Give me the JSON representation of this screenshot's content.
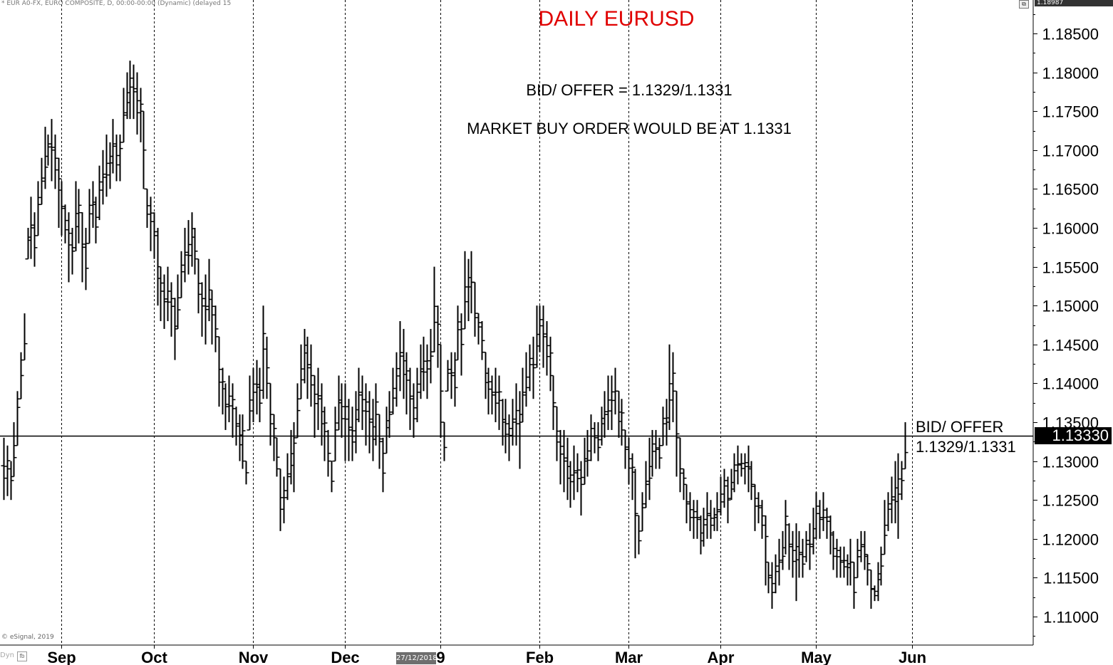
{
  "header": {
    "symbol_info": "* EUR A0-FX, EURO COMPOSITE, D, 00:00-00:00 (Dynamic) (delayed 15",
    "top_price_tag": "1.18987"
  },
  "annotations": {
    "bid_offer_line1": "BID/ OFFER = 1.1329/1.1331",
    "market_order": "MARKET BUY ORDER WOULD BE AT 1.1331",
    "right_label_1": "BID/ OFFER",
    "right_label_2": "1.1329/1.1331"
  },
  "footer": {
    "copyright": "© eSignal, 2019",
    "date_flag": "27/12/2018",
    "corner_label": "Dyn"
  },
  "colors": {
    "title": "#e00000",
    "bars": "#000000",
    "grid": "#000000",
    "last_price_bg": "#000000"
  },
  "chart_data": {
    "type": "ohlc",
    "title": "DAILY EURUSD",
    "y_axis": {
      "ylim": [
        1.1045,
        1.1905
      ],
      "ticks": [
        1.185,
        1.18,
        1.175,
        1.17,
        1.165,
        1.16,
        1.155,
        1.15,
        1.145,
        1.14,
        1.135,
        1.13,
        1.125,
        1.12,
        1.115,
        1.11
      ],
      "tick_labels": [
        "1.18500",
        "1.18000",
        "1.17500",
        "1.17000",
        "1.16500",
        "1.16000",
        "1.15500",
        "1.15000",
        "1.14500",
        "1.14000",
        "1.13500",
        "1.13000",
        "1.12500",
        "1.12000",
        "1.11500",
        "1.11000"
      ],
      "position": "right"
    },
    "x_axis": {
      "month_labels": [
        "Sep",
        "Oct",
        "Nov",
        "Dec",
        "9",
        "Feb",
        "Mar",
        "Apr",
        "May",
        "Jun"
      ],
      "month_start_bar": [
        17,
        44,
        73,
        100,
        128,
        157,
        183,
        210,
        238,
        266
      ]
    },
    "grid": "vertical dashed at month starts",
    "horizontal_line": 1.1333,
    "last_price_label": "1.13330",
    "bars": [
      [
        1.133,
        1.125
      ],
      [
        1.132,
        1.1255
      ],
      [
        1.13,
        1.125
      ],
      [
        1.135,
        1.128
      ],
      [
        1.139,
        1.132
      ],
      [
        1.144,
        1.138
      ],
      [
        1.149,
        1.143
      ],
      [
        1.16,
        1.156
      ],
      [
        1.164,
        1.156
      ],
      [
        1.162,
        1.155
      ],
      [
        1.166,
        1.159
      ],
      [
        1.169,
        1.163
      ],
      [
        1.173,
        1.165
      ],
      [
        1.172,
        1.168
      ],
      [
        1.174,
        1.166
      ],
      [
        1.172,
        1.165
      ],
      [
        1.169,
        1.16
      ],
      [
        1.166,
        1.159
      ],
      [
        1.163,
        1.158
      ],
      [
        1.162,
        1.153
      ],
      [
        1.16,
        1.154
      ],
      [
        1.166,
        1.157
      ],
      [
        1.165,
        1.158
      ],
      [
        1.162,
        1.153
      ],
      [
        1.16,
        1.152
      ],
      [
        1.165,
        1.158
      ],
      [
        1.166,
        1.16
      ],
      [
        1.164,
        1.158
      ],
      [
        1.168,
        1.161
      ],
      [
        1.17,
        1.163
      ],
      [
        1.172,
        1.164
      ],
      [
        1.171,
        1.165
      ],
      [
        1.174,
        1.167
      ],
      [
        1.172,
        1.166
      ],
      [
        1.172,
        1.166
      ],
      [
        1.178,
        1.171
      ],
      [
        1.18,
        1.174
      ],
      [
        1.1815,
        1.174
      ],
      [
        1.181,
        1.174
      ],
      [
        1.18,
        1.172
      ],
      [
        1.178,
        1.171
      ],
      [
        1.175,
        1.165
      ],
      [
        1.165,
        1.16
      ],
      [
        1.164,
        1.157
      ],
      [
        1.162,
        1.156
      ],
      [
        1.16,
        1.15
      ],
      [
        1.155,
        1.148
      ],
      [
        1.154,
        1.147
      ],
      [
        1.155,
        1.148
      ],
      [
        1.153,
        1.146
      ],
      [
        1.151,
        1.143
      ],
      [
        1.154,
        1.147
      ],
      [
        1.157,
        1.151
      ],
      [
        1.16,
        1.153
      ],
      [
        1.161,
        1.154
      ],
      [
        1.162,
        1.155
      ],
      [
        1.16,
        1.154
      ],
      [
        1.156,
        1.149
      ],
      [
        1.153,
        1.146
      ],
      [
        1.154,
        1.145
      ],
      [
        1.156,
        1.148
      ],
      [
        1.152,
        1.145
      ],
      [
        1.15,
        1.144
      ],
      [
        1.146,
        1.137
      ],
      [
        1.142,
        1.136
      ],
      [
        1.14,
        1.134
      ],
      [
        1.141,
        1.135
      ],
      [
        1.14,
        1.133
      ],
      [
        1.137,
        1.132
      ],
      [
        1.136,
        1.13
      ],
      [
        1.136,
        1.129
      ],
      [
        1.13,
        1.127
      ],
      [
        1.141,
        1.134
      ],
      [
        1.142,
        1.135
      ],
      [
        1.143,
        1.136
      ],
      [
        1.142,
        1.135
      ],
      [
        1.15,
        1.138
      ],
      [
        1.146,
        1.138
      ],
      [
        1.14,
        1.132
      ],
      [
        1.136,
        1.13
      ],
      [
        1.133,
        1.128
      ],
      [
        1.129,
        1.121
      ],
      [
        1.128,
        1.122
      ],
      [
        1.131,
        1.125
      ],
      [
        1.134,
        1.127
      ],
      [
        1.135,
        1.126
      ],
      [
        1.14,
        1.133
      ],
      [
        1.145,
        1.138
      ],
      [
        1.147,
        1.14
      ],
      [
        1.146,
        1.138
      ],
      [
        1.145,
        1.137
      ],
      [
        1.141,
        1.133
      ],
      [
        1.142,
        1.134
      ],
      [
        1.14,
        1.132
      ],
      [
        1.137,
        1.13
      ],
      [
        1.134,
        1.128
      ],
      [
        1.13,
        1.126
      ],
      [
        1.137,
        1.13
      ],
      [
        1.141,
        1.134
      ],
      [
        1.14,
        1.133
      ],
      [
        1.14,
        1.13
      ],
      [
        1.138,
        1.13
      ],
      [
        1.137,
        1.13
      ],
      [
        1.139,
        1.131
      ],
      [
        1.142,
        1.135
      ],
      [
        1.141,
        1.134
      ],
      [
        1.14,
        1.132
      ],
      [
        1.139,
        1.131
      ],
      [
        1.138,
        1.13
      ],
      [
        1.14,
        1.132
      ],
      [
        1.136,
        1.129
      ],
      [
        1.133,
        1.126
      ],
      [
        1.137,
        1.131
      ],
      [
        1.139,
        1.133
      ],
      [
        1.142,
        1.136
      ],
      [
        1.144,
        1.137
      ],
      [
        1.148,
        1.139
      ],
      [
        1.147,
        1.138
      ],
      [
        1.144,
        1.136
      ],
      [
        1.142,
        1.134
      ],
      [
        1.14,
        1.133
      ],
      [
        1.142,
        1.135
      ],
      [
        1.145,
        1.138
      ],
      [
        1.146,
        1.139
      ],
      [
        1.145,
        1.138
      ],
      [
        1.147,
        1.14
      ],
      [
        1.155,
        1.144
      ],
      [
        1.15,
        1.142
      ],
      [
        1.145,
        1.133
      ],
      [
        1.135,
        1.13
      ],
      [
        1.143,
        1.139
      ],
      [
        1.144,
        1.138
      ],
      [
        1.144,
        1.137
      ],
      [
        1.15,
        1.143
      ],
      [
        1.149,
        1.141
      ],
      [
        1.157,
        1.147
      ],
      [
        1.156,
        1.148
      ],
      [
        1.157,
        1.149
      ],
      [
        1.153,
        1.146
      ],
      [
        1.149,
        1.145
      ],
      [
        1.148,
        1.143
      ],
      [
        1.144,
        1.138
      ],
      [
        1.142,
        1.136
      ],
      [
        1.141,
        1.136
      ],
      [
        1.142,
        1.135
      ],
      [
        1.141,
        1.134
      ],
      [
        1.138,
        1.132
      ],
      [
        1.138,
        1.131
      ],
      [
        1.136,
        1.13
      ],
      [
        1.138,
        1.132
      ],
      [
        1.14,
        1.132
      ],
      [
        1.139,
        1.129
      ],
      [
        1.142,
        1.135
      ],
      [
        1.144,
        1.137
      ],
      [
        1.145,
        1.139
      ],
      [
        1.146,
        1.138
      ],
      [
        1.15,
        1.142
      ],
      [
        1.15,
        1.144
      ],
      [
        1.15,
        1.142
      ],
      [
        1.148,
        1.141
      ],
      [
        1.146,
        1.139
      ],
      [
        1.141,
        1.134
      ],
      [
        1.137,
        1.13
      ],
      [
        1.134,
        1.127
      ],
      [
        1.134,
        1.126
      ],
      [
        1.133,
        1.125
      ],
      [
        1.13,
        1.124
      ],
      [
        1.132,
        1.125
      ],
      [
        1.131,
        1.126
      ],
      [
        1.13,
        1.123
      ],
      [
        1.133,
        1.127
      ],
      [
        1.134,
        1.128
      ],
      [
        1.136,
        1.13
      ],
      [
        1.135,
        1.131
      ],
      [
        1.135,
        1.13
      ],
      [
        1.137,
        1.132
      ],
      [
        1.139,
        1.133
      ],
      [
        1.141,
        1.134
      ],
      [
        1.141,
        1.134
      ],
      [
        1.142,
        1.136
      ],
      [
        1.139,
        1.133
      ],
      [
        1.138,
        1.132
      ],
      [
        1.134,
        1.129
      ],
      [
        1.133,
        1.127
      ],
      [
        1.131,
        1.125
      ],
      [
        1.129,
        1.1175
      ],
      [
        1.123,
        1.118
      ],
      [
        1.126,
        1.121
      ],
      [
        1.13,
        1.124
      ],
      [
        1.133,
        1.125
      ],
      [
        1.134,
        1.128
      ],
      [
        1.134,
        1.129
      ],
      [
        1.133,
        1.129
      ],
      [
        1.137,
        1.132
      ],
      [
        1.138,
        1.132
      ],
      [
        1.145,
        1.134
      ],
      [
        1.144,
        1.135
      ],
      [
        1.139,
        1.128
      ],
      [
        1.133,
        1.126
      ],
      [
        1.129,
        1.125
      ],
      [
        1.127,
        1.122
      ],
      [
        1.126,
        1.121
      ],
      [
        1.125,
        1.12
      ],
      [
        1.125,
        1.12
      ],
      [
        1.123,
        1.118
      ],
      [
        1.124,
        1.119
      ],
      [
        1.126,
        1.12
      ],
      [
        1.125,
        1.12
      ],
      [
        1.124,
        1.121
      ],
      [
        1.126,
        1.121
      ],
      [
        1.128,
        1.123
      ],
      [
        1.129,
        1.124
      ],
      [
        1.128,
        1.122
      ],
      [
        1.129,
        1.125
      ],
      [
        1.131,
        1.126
      ],
      [
        1.132,
        1.127
      ],
      [
        1.131,
        1.128
      ],
      [
        1.131,
        1.127
      ],
      [
        1.132,
        1.126
      ],
      [
        1.13,
        1.125
      ],
      [
        1.127,
        1.121
      ],
      [
        1.126,
        1.122
      ],
      [
        1.125,
        1.12
      ],
      [
        1.123,
        1.114
      ],
      [
        1.117,
        1.113
      ],
      [
        1.117,
        1.111
      ],
      [
        1.118,
        1.113
      ],
      [
        1.12,
        1.114
      ],
      [
        1.121,
        1.116
      ],
      [
        1.125,
        1.118
      ],
      [
        1.122,
        1.116
      ],
      [
        1.121,
        1.115
      ],
      [
        1.122,
        1.112
      ],
      [
        1.121,
        1.115
      ],
      [
        1.12,
        1.115
      ],
      [
        1.121,
        1.117
      ],
      [
        1.122,
        1.116
      ],
      [
        1.124,
        1.118
      ],
      [
        1.126,
        1.12
      ],
      [
        1.125,
        1.12
      ],
      [
        1.126,
        1.121
      ],
      [
        1.124,
        1.12
      ],
      [
        1.123,
        1.118
      ],
      [
        1.121,
        1.116
      ],
      [
        1.12,
        1.115
      ],
      [
        1.119,
        1.115
      ],
      [
        1.119,
        1.115
      ],
      [
        1.118,
        1.114
      ],
      [
        1.12,
        1.114
      ],
      [
        1.117,
        1.111
      ],
      [
        1.12,
        1.115
      ],
      [
        1.121,
        1.117
      ],
      [
        1.121,
        1.116
      ],
      [
        1.118,
        1.114
      ],
      [
        1.116,
        1.111
      ],
      [
        1.114,
        1.112
      ],
      [
        1.117,
        1.112
      ],
      [
        1.119,
        1.114
      ],
      [
        1.125,
        1.118
      ],
      [
        1.126,
        1.121
      ],
      [
        1.128,
        1.122
      ],
      [
        1.13,
        1.122
      ],
      [
        1.131,
        1.12
      ],
      [
        1.13,
        1.125
      ],
      [
        1.135,
        1.129
      ]
    ]
  }
}
